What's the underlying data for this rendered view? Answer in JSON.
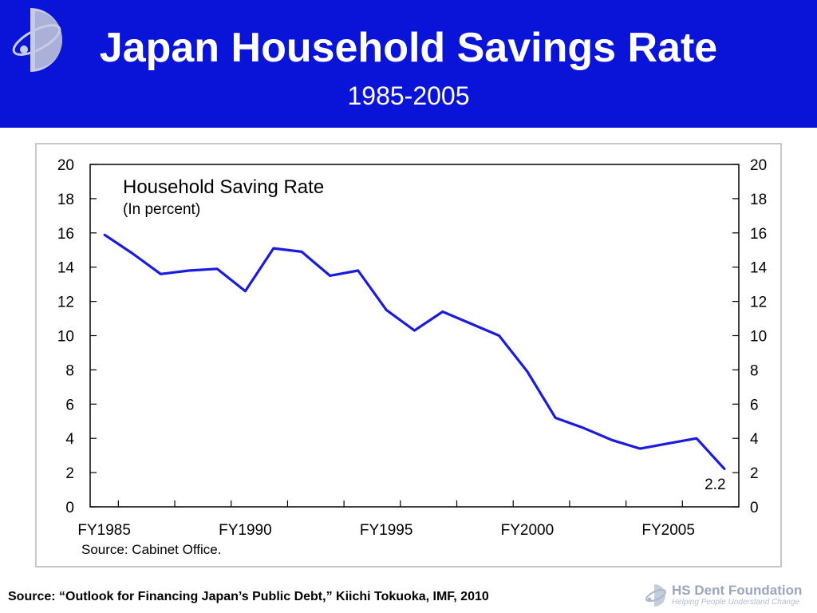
{
  "header": {
    "title": "Japan Household Savings Rate",
    "subtitle": "1985-2005"
  },
  "footer": {
    "source": "Source: “Outlook for Financing Japan’s Public Debt,” Kiichi Tokuoka, IMF, 2010"
  },
  "brand": {
    "name": "HS Dent Foundation",
    "tagline": "Helping People Understand Change"
  },
  "colors": {
    "header_bg": "#0a14d8",
    "line": "#1a1ae0"
  },
  "chart_data": {
    "type": "line",
    "title": "Household Saving Rate",
    "subtitle": "(In percent)",
    "x": [
      1985,
      1986,
      1987,
      1988,
      1989,
      1990,
      1991,
      1992,
      1993,
      1994,
      1995,
      1996,
      1997,
      1998,
      1999,
      2000,
      2001,
      2002,
      2003,
      2004,
      2005,
      2006,
      2007
    ],
    "series": [
      {
        "values": [
          15.9,
          14.8,
          13.6,
          13.8,
          13.9,
          12.6,
          15.1,
          14.9,
          13.5,
          13.8,
          11.5,
          10.3,
          11.4,
          10.7,
          10.0,
          7.9,
          5.2,
          4.6,
          3.9,
          3.4,
          3.7,
          4.0,
          2.2
        ]
      }
    ],
    "xtick_labels": [
      "FY1985",
      "FY1990",
      "FY1995",
      "FY2000",
      "FY2005"
    ],
    "xtick_years": [
      1985,
      1990,
      1995,
      2000,
      2005
    ],
    "yticks": [
      0,
      2,
      4,
      6,
      8,
      10,
      12,
      14,
      16,
      18,
      20
    ],
    "ylim": [
      0,
      20
    ],
    "xlim": [
      1984.5,
      2007.5
    ],
    "annotation": {
      "x": 2007,
      "text": "2.2"
    },
    "source": "Source: Cabinet Office.",
    "grid": false
  }
}
